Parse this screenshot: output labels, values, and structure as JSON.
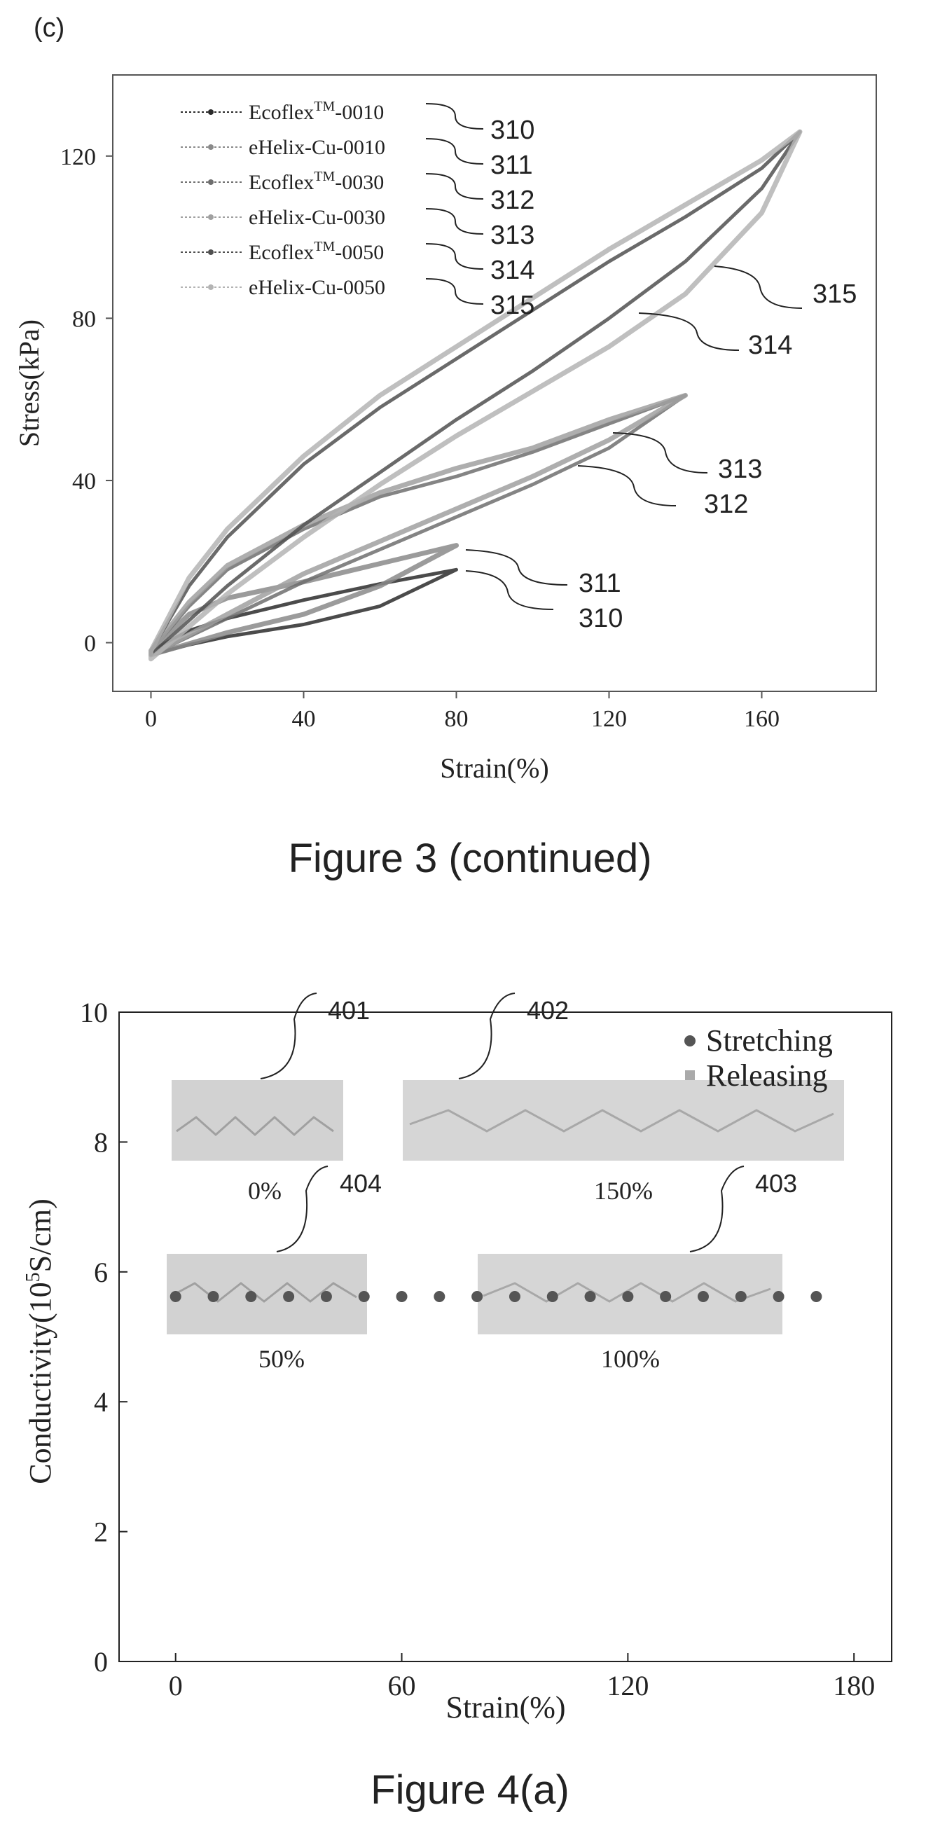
{
  "figure_c": {
    "panel_label": "(c)",
    "caption": "Figure 3 (continued)",
    "ref_labels_left": [
      "310",
      "311",
      "312",
      "313",
      "314",
      "315"
    ],
    "ref_labels_curves": [
      {
        "label": "315"
      },
      {
        "label": "314"
      },
      {
        "label": "313"
      },
      {
        "label": "312"
      },
      {
        "label": "311"
      },
      {
        "label": "310"
      }
    ]
  },
  "figure_4a": {
    "caption": "Figure 4(a)",
    "insets": [
      {
        "ref": "401",
        "strain_label": "0%"
      },
      {
        "ref": "402",
        "strain_label": "150%"
      },
      {
        "ref": "404",
        "strain_label": "50%"
      },
      {
        "ref": "403",
        "strain_label": "100%"
      }
    ]
  },
  "chart_data": [
    {
      "type": "line",
      "xlabel": "Strain(%)",
      "ylabel": "Stress(kPa)",
      "xlim": [
        -10,
        190
      ],
      "ylim": [
        -12,
        140
      ],
      "xticks": [
        0,
        40,
        80,
        120,
        160
      ],
      "yticks": [
        0,
        40,
        80,
        120
      ],
      "legend_position": "top-left",
      "grid": false,
      "series": [
        {
          "name": "Ecoflex™-0010",
          "legend_prefix": "Ecoflex",
          "legend_sup": "TM",
          "legend_suffix": "-0010",
          "color": "#2b2b2b",
          "max_strain": 80,
          "max_stress": 18,
          "loading": [
            [
              0,
              -2
            ],
            [
              10,
              3
            ],
            [
              20,
              6
            ],
            [
              40,
              10.5
            ],
            [
              60,
              14.5
            ],
            [
              80,
              18
            ]
          ],
          "unloading": [
            [
              80,
              18
            ],
            [
              60,
              9
            ],
            [
              40,
              4.5
            ],
            [
              20,
              1.5
            ],
            [
              10,
              -0.5
            ],
            [
              0,
              -3
            ]
          ]
        },
        {
          "name": "eHelix-Cu-0010",
          "legend_prefix": "eHelix-Cu-0010",
          "legend_sup": "",
          "legend_suffix": "",
          "color": "#8a8a8a",
          "max_strain": 80,
          "max_stress": 24,
          "loading": [
            [
              0,
              -2
            ],
            [
              10,
              7
            ],
            [
              20,
              11
            ],
            [
              40,
              15
            ],
            [
              60,
              19.5
            ],
            [
              80,
              24
            ]
          ],
          "unloading": [
            [
              80,
              24
            ],
            [
              70,
              19
            ],
            [
              60,
              14
            ],
            [
              40,
              7
            ],
            [
              20,
              2.5
            ],
            [
              0,
              -3
            ]
          ]
        },
        {
          "name": "Ecoflex™-0030",
          "legend_prefix": "Ecoflex",
          "legend_sup": "TM",
          "legend_suffix": "-0030",
          "color": "#6e6e6e",
          "max_strain": 140,
          "max_stress": 61,
          "loading": [
            [
              0,
              -2
            ],
            [
              10,
              9
            ],
            [
              20,
              18
            ],
            [
              40,
              28
            ],
            [
              60,
              36
            ],
            [
              80,
              41
            ],
            [
              100,
              47
            ],
            [
              120,
              54
            ],
            [
              140,
              61
            ]
          ],
          "unloading": [
            [
              140,
              61
            ],
            [
              120,
              48
            ],
            [
              100,
              39
            ],
            [
              80,
              31
            ],
            [
              60,
              23
            ],
            [
              40,
              15
            ],
            [
              20,
              6
            ],
            [
              0,
              -3
            ]
          ]
        },
        {
          "name": "eHelix-Cu-0030",
          "legend_prefix": "eHelix-Cu-0030",
          "legend_sup": "",
          "legend_suffix": "",
          "color": "#a0a0a0",
          "max_strain": 140,
          "max_stress": 61,
          "loading": [
            [
              0,
              -2
            ],
            [
              10,
              10
            ],
            [
              20,
              19
            ],
            [
              40,
              29
            ],
            [
              60,
              37
            ],
            [
              80,
              43
            ],
            [
              100,
              48
            ],
            [
              120,
              55
            ],
            [
              140,
              61
            ]
          ],
          "unloading": [
            [
              140,
              61
            ],
            [
              120,
              50
            ],
            [
              100,
              41
            ],
            [
              80,
              33
            ],
            [
              60,
              25
            ],
            [
              40,
              17
            ],
            [
              20,
              7
            ],
            [
              0,
              -3
            ]
          ]
        },
        {
          "name": "Ecoflex™-0050",
          "legend_prefix": "Ecoflex",
          "legend_sup": "TM",
          "legend_suffix": "-0050",
          "color": "#505050",
          "max_strain": 170,
          "max_stress": 126,
          "loading": [
            [
              0,
              -2
            ],
            [
              10,
              14
            ],
            [
              20,
              26
            ],
            [
              40,
              44
            ],
            [
              60,
              58
            ],
            [
              80,
              70
            ],
            [
              100,
              82
            ],
            [
              120,
              94
            ],
            [
              140,
              105
            ],
            [
              160,
              117
            ],
            [
              170,
              126
            ]
          ],
          "unloading": [
            [
              170,
              126
            ],
            [
              160,
              112
            ],
            [
              140,
              94
            ],
            [
              120,
              80
            ],
            [
              100,
              67
            ],
            [
              80,
              55
            ],
            [
              60,
              42
            ],
            [
              40,
              29
            ],
            [
              20,
              14
            ],
            [
              0,
              -3
            ]
          ]
        },
        {
          "name": "eHelix-Cu-0050",
          "legend_prefix": "eHelix-Cu-0050",
          "legend_sup": "",
          "legend_suffix": "",
          "color": "#b4b4b4",
          "max_strain": 170,
          "max_stress": 126,
          "loading": [
            [
              0,
              -2
            ],
            [
              10,
              16
            ],
            [
              20,
              28
            ],
            [
              40,
              46
            ],
            [
              60,
              61
            ],
            [
              80,
              73
            ],
            [
              100,
              85
            ],
            [
              120,
              97
            ],
            [
              140,
              108
            ],
            [
              160,
              119
            ],
            [
              170,
              126
            ]
          ],
          "unloading": [
            [
              170,
              126
            ],
            [
              160,
              106
            ],
            [
              140,
              86
            ],
            [
              120,
              73
            ],
            [
              100,
              62
            ],
            [
              80,
              51
            ],
            [
              60,
              39
            ],
            [
              40,
              26
            ],
            [
              20,
              12
            ],
            [
              0,
              -4
            ]
          ]
        }
      ]
    },
    {
      "type": "scatter",
      "xlabel": "Strain(%)",
      "ylabel_prefix": "Conductivity(10",
      "ylabel_sup": "5",
      "ylabel_suffix": "S/cm)",
      "xlim": [
        -15,
        190
      ],
      "ylim": [
        0,
        10
      ],
      "xticks": [
        0,
        60,
        120,
        180
      ],
      "yticks": [
        0,
        2,
        4,
        6,
        8,
        10
      ],
      "legend_position": "top-right",
      "grid": false,
      "series": [
        {
          "name": "Stretching",
          "marker": "circle",
          "color": "#555555",
          "x": [
            0,
            10,
            20,
            30,
            40,
            50,
            60,
            70,
            80,
            90,
            100,
            110,
            120,
            130,
            140,
            150,
            160,
            170
          ],
          "y": [
            5.62,
            5.62,
            5.62,
            5.62,
            5.62,
            5.62,
            5.62,
            5.62,
            5.62,
            5.62,
            5.62,
            5.62,
            5.62,
            5.62,
            5.62,
            5.62,
            5.62,
            5.62
          ]
        },
        {
          "name": "Releasing",
          "marker": "square",
          "color": "#aaaaaa",
          "x": [],
          "y": []
        }
      ]
    }
  ]
}
